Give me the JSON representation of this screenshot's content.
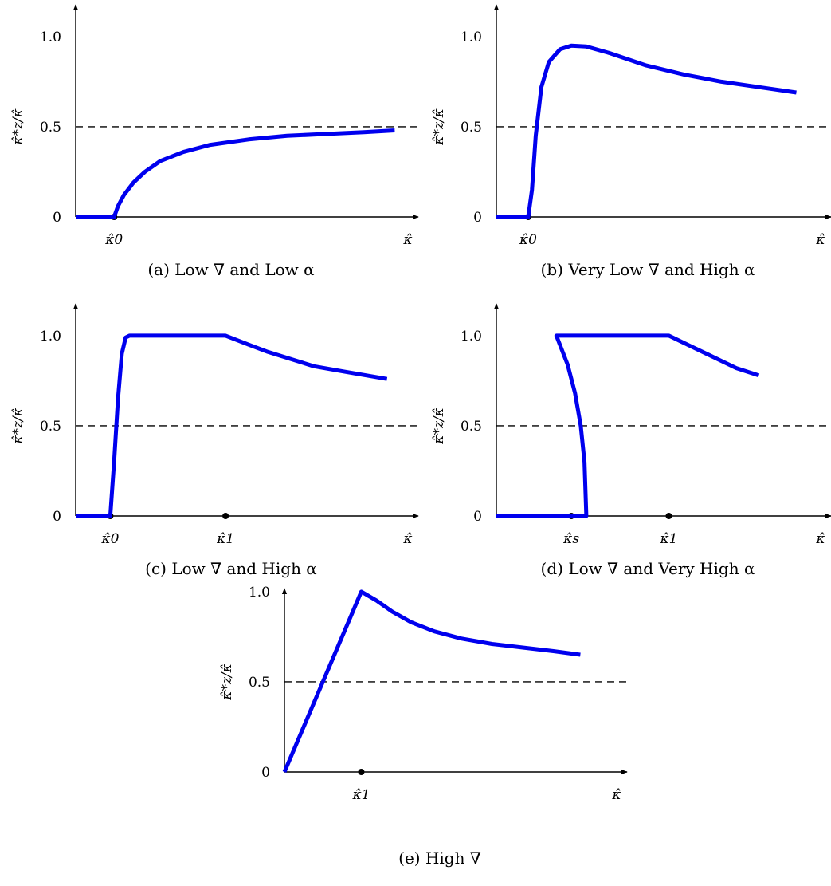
{
  "colors": {
    "curve": "#0000ee",
    "axis": "#000000"
  },
  "chart_data": [
    {
      "type": "line",
      "caption": "(a) Low ∇ and Low α",
      "ylabel": "κ̂*z/κ̂",
      "xlabel": "κ̂",
      "yticks": [
        {
          "v": 0,
          "label": "0"
        },
        {
          "v": 0.5,
          "label": "0.5"
        },
        {
          "v": 1.0,
          "label": "1.0"
        }
      ],
      "xmarks": [
        {
          "x": 1.0,
          "label": "κ̂0"
        }
      ],
      "reference_line": {
        "y": 0.5,
        "style": "dashed"
      },
      "xlim": [
        0,
        8.5
      ],
      "ylim": [
        0,
        1.15
      ],
      "series": [
        {
          "x": [
            0,
            1.0,
            1.1,
            1.25,
            1.5,
            1.8,
            2.2,
            2.8,
            3.5,
            4.5,
            5.5,
            6.5,
            7.5,
            8.3
          ],
          "y": [
            0,
            0,
            0.06,
            0.12,
            0.19,
            0.25,
            0.31,
            0.36,
            0.4,
            0.43,
            0.45,
            0.46,
            0.47,
            0.48
          ]
        }
      ]
    },
    {
      "type": "line",
      "caption": "(b) Very Low ∇ and High α",
      "ylabel": "κ̂*z/κ̂",
      "xlabel": "κ̂",
      "yticks": [
        {
          "v": 0,
          "label": "0"
        },
        {
          "v": 0.5,
          "label": "0.5"
        },
        {
          "v": 1.0,
          "label": "1.0"
        }
      ],
      "xmarks": [
        {
          "x": 0.85,
          "label": "κ̂0"
        }
      ],
      "reference_line": {
        "y": 0.5,
        "style": "dashed"
      },
      "xlim": [
        0,
        8.5
      ],
      "ylim": [
        0,
        1.15
      ],
      "series": [
        {
          "x": [
            0,
            0.85,
            0.95,
            1.05,
            1.2,
            1.4,
            1.7,
            2.0,
            2.4,
            3.0,
            4.0,
            5.0,
            6.0,
            7.0,
            8.0
          ],
          "y": [
            0,
            0,
            0.15,
            0.45,
            0.72,
            0.86,
            0.93,
            0.95,
            0.945,
            0.91,
            0.84,
            0.79,
            0.75,
            0.72,
            0.69
          ]
        }
      ]
    },
    {
      "type": "line",
      "caption": "(c) Low ∇ and High α",
      "ylabel": "κ̂*z/κ̂",
      "xlabel": "κ̂",
      "yticks": [
        {
          "v": 0,
          "label": "0"
        },
        {
          "v": 0.5,
          "label": "0.5"
        },
        {
          "v": 1.0,
          "label": "1.0"
        }
      ],
      "xmarks": [
        {
          "x": 0.9,
          "label": "κ̂0"
        },
        {
          "x": 3.9,
          "label": "κ̂1"
        }
      ],
      "reference_line": {
        "y": 0.5,
        "style": "dashed"
      },
      "xlim": [
        0,
        8.5
      ],
      "ylim": [
        0,
        1.15
      ],
      "series": [
        {
          "x": [
            0,
            0.9,
            1.0,
            1.1,
            1.2,
            1.3,
            1.4,
            3.9,
            4.5,
            5.0,
            5.6,
            6.2,
            7.0,
            8.1
          ],
          "y": [
            0,
            0,
            0.3,
            0.65,
            0.9,
            0.99,
            1.0,
            1.0,
            0.95,
            0.91,
            0.87,
            0.83,
            0.8,
            0.76
          ]
        }
      ]
    },
    {
      "type": "line",
      "caption": "(d) Low ∇ and Very High α",
      "ylabel": "κ̂*z/κ̂",
      "xlabel": "κ̂",
      "yticks": [
        {
          "v": 0,
          "label": "0"
        },
        {
          "v": 0.5,
          "label": "0.5"
        },
        {
          "v": 1.0,
          "label": "1.0"
        }
      ],
      "xmarks": [
        {
          "x": 2.0,
          "label": "κ̂s"
        },
        {
          "x": 4.6,
          "label": "κ̂1"
        }
      ],
      "reference_line": {
        "y": 0.5,
        "style": "dashed"
      },
      "xlim": [
        0,
        8.5
      ],
      "ylim": [
        0,
        1.15
      ],
      "series": [
        {
          "x": [
            0,
            2.4,
            2.35,
            2.25,
            2.1,
            1.9,
            1.6,
            4.6,
            5.2,
            5.8,
            6.4,
            7.0
          ],
          "y": [
            0,
            0,
            0.3,
            0.5,
            0.68,
            0.84,
            1.0,
            1.0,
            0.94,
            0.88,
            0.82,
            0.78
          ]
        }
      ]
    },
    {
      "type": "line",
      "caption": "(e) High ∇",
      "ylabel": "κ̂*z/κ̂",
      "xlabel": "κ̂",
      "yticks": [
        {
          "v": 0,
          "label": "0"
        },
        {
          "v": 0.5,
          "label": "0.5"
        },
        {
          "v": 1.0,
          "label": "1.0"
        }
      ],
      "xmarks": [
        {
          "x": 2.0,
          "label": "κ̂1"
        }
      ],
      "reference_line": {
        "y": 0.5,
        "style": "dashed"
      },
      "xlim": [
        0,
        8.5
      ],
      "ylim": [
        0,
        1.15
      ],
      "series": [
        {
          "x": [
            0,
            2.0,
            2.4,
            2.8,
            3.3,
            3.9,
            4.6,
            5.4,
            6.2,
            7.0,
            7.7
          ],
          "y": [
            0,
            1.0,
            0.95,
            0.89,
            0.83,
            0.78,
            0.74,
            0.71,
            0.69,
            0.67,
            0.65
          ]
        }
      ]
    }
  ]
}
